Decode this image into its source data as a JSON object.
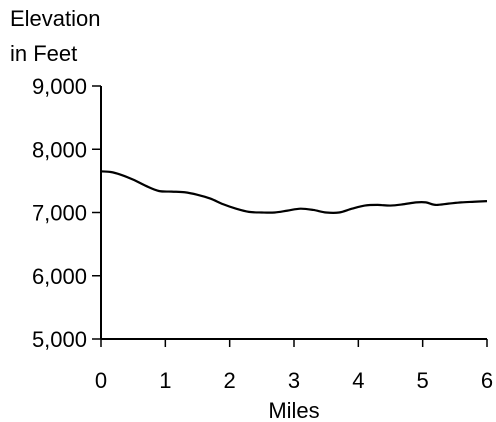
{
  "chart_data": {
    "type": "line",
    "ylabel_lines": [
      "Elevation",
      "in Feet"
    ],
    "xlabel": "Miles",
    "x_ticks": [
      "0",
      "1",
      "2",
      "3",
      "4",
      "5",
      "6"
    ],
    "y_ticks": [
      "5,000",
      "6,000",
      "7,000",
      "8,000",
      "9,000"
    ],
    "xlim": [
      0,
      6
    ],
    "ylim": [
      5000,
      9000
    ],
    "grid": false,
    "series": [
      {
        "x": [
          0,
          0.15,
          0.3,
          0.5,
          0.7,
          0.9,
          1.1,
          1.3,
          1.5,
          1.7,
          1.9,
          2.1,
          2.3,
          2.5,
          2.7,
          2.9,
          3.1,
          3.3,
          3.5,
          3.7,
          3.9,
          4.1,
          4.3,
          4.5,
          4.7,
          4.9,
          5.05,
          5.2,
          5.4,
          5.6,
          5.8,
          6.0
        ],
        "y": [
          7650,
          7640,
          7600,
          7520,
          7420,
          7340,
          7330,
          7320,
          7280,
          7220,
          7130,
          7060,
          7010,
          7000,
          7000,
          7030,
          7060,
          7040,
          7000,
          7000,
          7060,
          7110,
          7120,
          7110,
          7130,
          7160,
          7160,
          7120,
          7140,
          7160,
          7170,
          7180
        ]
      }
    ]
  }
}
